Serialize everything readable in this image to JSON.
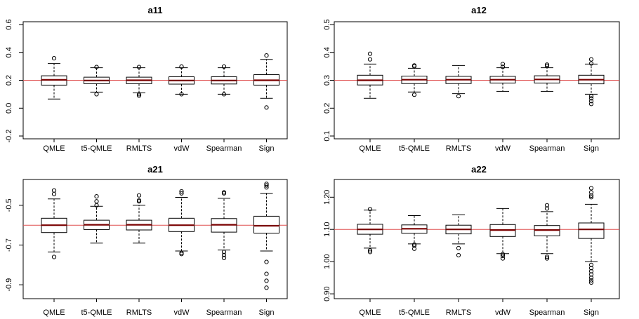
{
  "chart_data": [
    {
      "type": "boxplot",
      "title": "a11",
      "categories": [
        "QMLE",
        "t5-QMLE",
        "RMLTS",
        "vdW",
        "Spearman",
        "Sign"
      ],
      "ylim": [
        -0.22,
        0.62
      ],
      "yticks": [
        -0.2,
        0.0,
        0.2,
        0.4,
        0.6
      ],
      "ytick_labels": [
        "-0.2",
        "0.0",
        "0.2",
        "0.4",
        "0.6"
      ],
      "reference_line": 0.2,
      "reference_color": "#e05050",
      "median_color": "#7a0000",
      "boxes": [
        {
          "name": "QMLE",
          "q1": 0.165,
          "median": 0.203,
          "q3": 0.232,
          "whisker_low": 0.065,
          "whisker_high": 0.32,
          "outliers": [
            0.358
          ]
        },
        {
          "name": "t5-QMLE",
          "q1": 0.175,
          "median": 0.198,
          "q3": 0.222,
          "whisker_low": 0.115,
          "whisker_high": 0.29,
          "outliers": [
            0.1,
            0.295
          ]
        },
        {
          "name": "RMLTS",
          "q1": 0.175,
          "median": 0.2,
          "q3": 0.222,
          "whisker_low": 0.11,
          "whisker_high": 0.29,
          "outliers": [
            0.09,
            0.1,
            0.295
          ]
        },
        {
          "name": "vdW",
          "q1": 0.172,
          "median": 0.198,
          "q3": 0.225,
          "whisker_low": 0.1,
          "whisker_high": 0.29,
          "outliers": [
            0.1,
            0.298
          ]
        },
        {
          "name": "Spearman",
          "q1": 0.173,
          "median": 0.198,
          "q3": 0.225,
          "whisker_low": 0.1,
          "whisker_high": 0.29,
          "outliers": [
            0.1,
            0.298
          ]
        },
        {
          "name": "Sign",
          "q1": 0.165,
          "median": 0.2,
          "q3": 0.24,
          "whisker_low": 0.07,
          "whisker_high": 0.35,
          "outliers": [
            0.005,
            0.378
          ]
        }
      ]
    },
    {
      "type": "boxplot",
      "title": "a12",
      "categories": [
        "QMLE",
        "t5-QMLE",
        "RMLTS",
        "vdW",
        "Spearman",
        "Sign"
      ],
      "ylim": [
        0.09,
        0.51
      ],
      "yticks": [
        0.1,
        0.2,
        0.3,
        0.4,
        0.5
      ],
      "ytick_labels": [
        "0.1",
        "0.2",
        "0.3",
        "0.4",
        "0.5"
      ],
      "reference_line": 0.3,
      "reference_color": "#e05050",
      "median_color": "#7a0000",
      "boxes": [
        {
          "name": "QMLE",
          "q1": 0.283,
          "median": 0.3,
          "q3": 0.318,
          "whisker_low": 0.235,
          "whisker_high": 0.358,
          "outliers": [
            0.375,
            0.395
          ]
        },
        {
          "name": "t5-QMLE",
          "q1": 0.288,
          "median": 0.302,
          "q3": 0.315,
          "whisker_low": 0.258,
          "whisker_high": 0.343,
          "outliers": [
            0.248,
            0.35,
            0.353
          ]
        },
        {
          "name": "RMLTS",
          "q1": 0.288,
          "median": 0.302,
          "q3": 0.314,
          "whisker_low": 0.252,
          "whisker_high": 0.353,
          "outliers": [
            0.243
          ]
        },
        {
          "name": "vdW",
          "q1": 0.29,
          "median": 0.302,
          "q3": 0.314,
          "whisker_low": 0.26,
          "whisker_high": 0.345,
          "outliers": [
            0.348,
            0.358
          ]
        },
        {
          "name": "Spearman",
          "q1": 0.29,
          "median": 0.303,
          "q3": 0.316,
          "whisker_low": 0.26,
          "whisker_high": 0.345,
          "outliers": [
            0.352,
            0.356
          ]
        },
        {
          "name": "Sign",
          "q1": 0.287,
          "median": 0.302,
          "q3": 0.318,
          "whisker_low": 0.25,
          "whisker_high": 0.358,
          "outliers": [
            0.215,
            0.225,
            0.235,
            0.243,
            0.36,
            0.375
          ]
        }
      ]
    },
    {
      "type": "boxplot",
      "title": "a21",
      "categories": [
        "QMLE",
        "t5-QMLE",
        "RMLTS",
        "vdW",
        "Spearman",
        "Sign"
      ],
      "ylim": [
        -0.97,
        -0.37
      ],
      "yticks": [
        -0.9,
        -0.7,
        -0.5
      ],
      "ytick_labels": [
        "-0.9",
        "-0.7",
        "-0.5"
      ],
      "reference_line": -0.6,
      "reference_color": "#e05050",
      "median_color": "#7a0000",
      "boxes": [
        {
          "name": "QMLE",
          "q1": -0.637,
          "median": -0.6,
          "q3": -0.565,
          "whisker_low": -0.735,
          "whisker_high": -0.468,
          "outliers": [
            -0.76,
            -0.443,
            -0.425
          ]
        },
        {
          "name": "t5-QMLE",
          "q1": -0.622,
          "median": -0.598,
          "q3": -0.575,
          "whisker_low": -0.69,
          "whisker_high": -0.505,
          "outliers": [
            -0.5,
            -0.48,
            -0.455
          ]
        },
        {
          "name": "RMLTS",
          "q1": -0.624,
          "median": -0.598,
          "q3": -0.575,
          "whisker_low": -0.69,
          "whisker_high": -0.5,
          "outliers": [
            -0.48,
            -0.475,
            -0.45
          ]
        },
        {
          "name": "vdW",
          "q1": -0.632,
          "median": -0.6,
          "q3": -0.565,
          "whisker_low": -0.73,
          "whisker_high": -0.46,
          "outliers": [
            -0.745,
            -0.74,
            -0.44,
            -0.43
          ]
        },
        {
          "name": "Spearman",
          "q1": -0.635,
          "median": -0.598,
          "q3": -0.567,
          "whisker_low": -0.725,
          "whisker_high": -0.465,
          "outliers": [
            -0.765,
            -0.75,
            -0.735,
            -0.44,
            -0.435
          ]
        },
        {
          "name": "Sign",
          "q1": -0.64,
          "median": -0.603,
          "q3": -0.555,
          "whisker_low": -0.73,
          "whisker_high": -0.44,
          "outliers": [
            -0.915,
            -0.88,
            -0.845,
            -0.785,
            -0.41,
            -0.4,
            -0.392
          ]
        }
      ]
    },
    {
      "type": "boxplot",
      "title": "a22",
      "categories": [
        "QMLE",
        "t5-QMLE",
        "RMLTS",
        "vdW",
        "Spearman",
        "Sign"
      ],
      "ylim": [
        0.885,
        1.255
      ],
      "yticks": [
        0.9,
        1.0,
        1.1,
        1.2
      ],
      "ytick_labels": [
        "0.90",
        "1.00",
        "1.10",
        "1.20"
      ],
      "reference_line": 1.1,
      "reference_color": "#e05050",
      "median_color": "#7a0000",
      "boxes": [
        {
          "name": "QMLE",
          "q1": 1.085,
          "median": 1.1,
          "q3": 1.116,
          "whisker_low": 1.042,
          "whisker_high": 1.16,
          "outliers": [
            1.03,
            1.035,
            1.163
          ]
        },
        {
          "name": "t5-QMLE",
          "q1": 1.088,
          "median": 1.102,
          "q3": 1.114,
          "whisker_low": 1.055,
          "whisker_high": 1.143,
          "outliers": [
            1.04,
            1.05,
            1.053
          ]
        },
        {
          "name": "RMLTS",
          "q1": 1.086,
          "median": 1.1,
          "q3": 1.113,
          "whisker_low": 1.055,
          "whisker_high": 1.145,
          "outliers": [
            1.02,
            1.042
          ]
        },
        {
          "name": "vdW",
          "q1": 1.078,
          "median": 1.098,
          "q3": 1.115,
          "whisker_low": 1.025,
          "whisker_high": 1.165,
          "outliers": [
            1.01,
            1.018,
            1.023
          ]
        },
        {
          "name": "Spearman",
          "q1": 1.08,
          "median": 1.098,
          "q3": 1.112,
          "whisker_low": 1.025,
          "whisker_high": 1.155,
          "outliers": [
            1.01,
            1.015,
            1.165,
            1.175
          ]
        },
        {
          "name": "Sign",
          "q1": 1.072,
          "median": 1.1,
          "q3": 1.12,
          "whisker_low": 1.0,
          "whisker_high": 1.178,
          "outliers": [
            0.935,
            0.942,
            0.95,
            0.96,
            0.97,
            0.98,
            0.99,
            1.2,
            1.205,
            1.215,
            1.228
          ]
        }
      ]
    }
  ]
}
